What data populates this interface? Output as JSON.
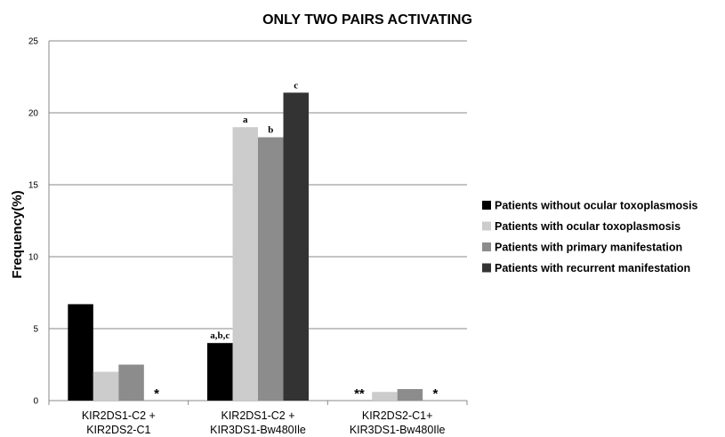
{
  "chart_data": {
    "type": "bar",
    "title": "ONLY TWO PAIRS ACTIVATING",
    "ylabel": "Frequency(%)",
    "xlabel": "",
    "ylim": [
      0,
      25
    ],
    "yticks": [
      "0",
      "5",
      "10",
      "15",
      "20",
      "25"
    ],
    "grid": true,
    "legend_position": "right",
    "categories": [
      [
        "KIR2DS1-C2 +",
        "KIR2DS2-C1"
      ],
      [
        "KIR2DS1-C2 +",
        "KIR3DS1-Bw480Ile"
      ],
      [
        "KIR2DS2-C1+",
        "KIR3DS1-Bw480Ile"
      ]
    ],
    "series": [
      {
        "name": "Patients without ocular toxoplasmosis",
        "color": "#000000",
        "values": [
          6.7,
          4.0,
          0
        ]
      },
      {
        "name": "Patients with ocular toxoplasmosis",
        "color": "#cccccc",
        "values": [
          2.0,
          19.0,
          0.6
        ]
      },
      {
        "name": "Patients with primary manifestation",
        "color": "#8c8c8c",
        "values": [
          2.5,
          18.3,
          0.8
        ]
      },
      {
        "name": "Patients with recurrent manifestation",
        "color": "#333333",
        "values": [
          0,
          21.4,
          0
        ]
      }
    ],
    "annotations": [
      {
        "category": 1,
        "series": 0,
        "text": "a,b,c",
        "style": "label"
      },
      {
        "category": 1,
        "series": 1,
        "text": "a",
        "style": "label"
      },
      {
        "category": 1,
        "series": 2,
        "text": "b",
        "style": "label"
      },
      {
        "category": 1,
        "series": 3,
        "text": "c",
        "style": "label"
      },
      {
        "category": 0,
        "series": 3,
        "text": "*",
        "style": "star"
      },
      {
        "category": 2,
        "series": 0,
        "text": "**",
        "style": "star"
      },
      {
        "category": 2,
        "series": 3,
        "text": "*",
        "style": "star"
      }
    ]
  }
}
